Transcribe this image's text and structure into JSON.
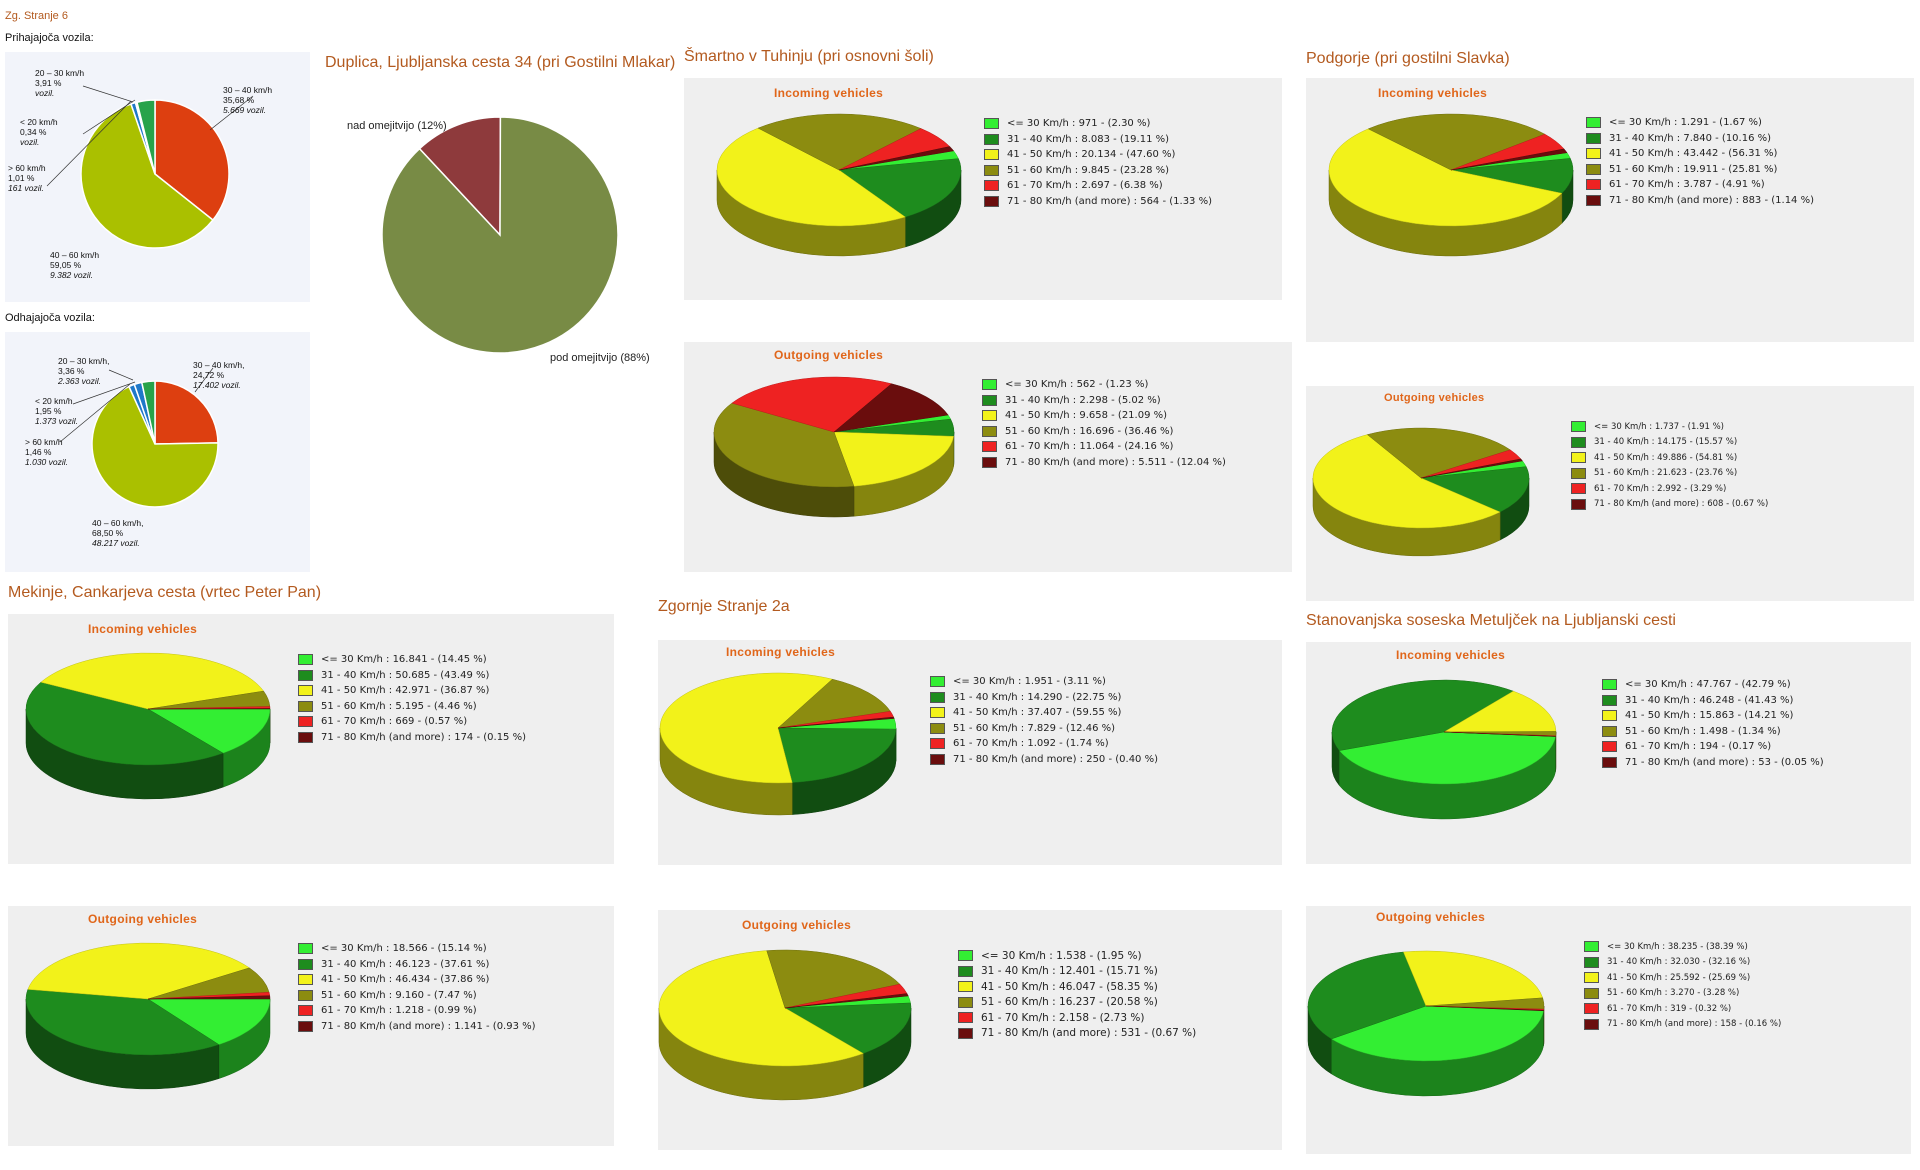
{
  "colors": {
    "c30": "#33ee33",
    "c40": "#1e8c1e",
    "c50": "#f2f21a",
    "c60": "#8c8c10",
    "c70": "#ee2222",
    "c80": "#6a0d0d",
    "zone_light": "#aac000",
    "zone_red": "#dd3f10",
    "zone_green": "#27a34a",
    "zone_blue": "#1f78c8",
    "dup_green": "#788b45",
    "dup_red": "#8e3a3c"
  },
  "page": {
    "top_label": "Zg. Stranje 6",
    "incoming_label": "Prihajajoča vozila:",
    "outgoing_label": "Odhajajoča vozila:"
  },
  "chart_data": [
    {
      "id": "zg_in",
      "type": "pie",
      "title": "Prihajajoča vozila:",
      "categories": [
        "30 - 40 km/h",
        "40 - 60 km/h",
        "> 60 km/h",
        "< 20 km/h",
        "20 - 30 km/h"
      ],
      "values": [
        35.68,
        59.05,
        1.01,
        0.34,
        3.91
      ],
      "counts": [
        "5.669 vozil.",
        "9.382 vozil.",
        "161 vozil.",
        "",
        ""
      ],
      "labels": [
        [
          "20 – 30 km/h",
          "3,91 %",
          "vozil."
        ],
        [
          "30 – 40 km/h",
          "35,68 %",
          "5.669 vozil."
        ],
        [
          "< 20 km/h",
          "0,34 %",
          "vozil."
        ],
        [
          "> 60 km/h",
          "1,01 %",
          "161 vozil."
        ],
        [
          "40 – 60 km/h",
          "59,05 %",
          "9.382 vozil."
        ]
      ]
    },
    {
      "id": "zg_out",
      "type": "pie",
      "title": "Odhajajoča vozila:",
      "categories": [
        "30 - 40 km/h",
        "40 - 60 km/h",
        "> 60 km/h",
        "< 20 km/h",
        "20 - 30 km/h"
      ],
      "values": [
        24.72,
        68.5,
        1.46,
        1.95,
        3.36
      ],
      "labels": [
        [
          "20 – 30 km/h,",
          "3,36 %",
          "2.363 vozil."
        ],
        [
          "30 – 40 km/h,",
          "24,72 %",
          "17.402 vozil."
        ],
        [
          "< 20 km/h",
          "1,95 %",
          "1.373 vozil."
        ],
        [
          "> 60 km/h",
          "1,46 %",
          "1.030 vozil."
        ],
        [
          "40 – 60 km/h,",
          "68,50 %",
          "48.217 vozil."
        ]
      ]
    },
    {
      "id": "duplica",
      "type": "pie",
      "title": "Duplica, Ljubljanska cesta 34 (pri Gostilni Mlakar)",
      "categories": [
        "pod omejitvijo (88%)",
        "nad omejitvijo (12%)"
      ],
      "values": [
        88,
        12
      ]
    },
    {
      "id": "smartno_in",
      "type": "pie",
      "title": "Šmartno v Tuhinju (pri osnovni šoli)",
      "subtitle": "Incoming vehicles",
      "values": [
        2.3,
        19.11,
        47.6,
        23.28,
        6.38,
        1.33
      ],
      "legend": [
        "<=  30 Km/h :    971 -  (2.30 %)",
        "31 -  40 Km/h :  8.083 -  (19.11 %)",
        "41 -  50 Km/h : 20.134 -  (47.60 %)",
        "51 -  60 Km/h :  9.845 -  (23.28 %)",
        "61 -  70 Km/h :  2.697 -  (6.38 %)",
        "71 -  80 Km/h (and more) :    564 -  (1.33 %)"
      ]
    },
    {
      "id": "smartno_out",
      "type": "pie",
      "subtitle": "Outgoing vehicles",
      "values": [
        1.23,
        5.02,
        21.09,
        36.46,
        24.16,
        12.04
      ],
      "legend": [
        "<=  30 Km/h :    562 -  (1.23 %)",
        "31 -  40 Km/h :  2.298 -  (5.02 %)",
        "41 -  50 Km/h :  9.658 -  (21.09 %)",
        "51 -  60 Km/h : 16.696 -  (36.46 %)",
        "61 -  70 Km/h : 11.064 -  (24.16 %)",
        "71 -  80 Km/h (and more) :  5.511 -  (12.04 %)"
      ]
    },
    {
      "id": "podgorje_in",
      "type": "pie",
      "title": "Podgorje (pri gostilni Slavka)",
      "subtitle": "Incoming vehicles",
      "values": [
        1.67,
        10.16,
        56.31,
        25.81,
        4.91,
        1.14
      ],
      "legend": [
        "<=  30 Km/h :  1.291 -  (1.67 %)",
        "31 -  40 Km/h :  7.840 -  (10.16 %)",
        "41 -  50 Km/h : 43.442 -  (56.31 %)",
        "51 -  60 Km/h : 19.911 -  (25.81 %)",
        "61 -  70 Km/h :  3.787 -  (4.91 %)",
        "71 -  80 Km/h (and more) :    883 -  (1.14 %)"
      ]
    },
    {
      "id": "podgorje_out",
      "type": "pie",
      "subtitle": "Outgoing vehicles",
      "values": [
        1.91,
        15.57,
        54.81,
        23.76,
        3.29,
        0.67
      ],
      "legend": [
        "<=  30 Km/h :  1.737 -  (1.91 %)",
        "31 -  40 Km/h : 14.175 -  (15.57 %)",
        "41 -  50 Km/h : 49.886 -  (54.81 %)",
        "51 -  60 Km/h : 21.623 -  (23.76 %)",
        "61 -  70 Km/h :  2.992 -  (3.29 %)",
        "71 -  80 Km/h (and more) :    608 -  (0.67 %)"
      ]
    },
    {
      "id": "mekinje_in",
      "type": "pie",
      "title": "Mekinje, Cankarjeva cesta (vrtec Peter Pan)",
      "subtitle": "Incoming vehicles",
      "values": [
        14.45,
        43.49,
        36.87,
        4.46,
        0.57,
        0.15
      ],
      "legend": [
        "<=  30 Km/h : 16.841 -  (14.45 %)",
        "31 -  40 Km/h : 50.685 -  (43.49 %)",
        "41 -  50 Km/h : 42.971 -  (36.87 %)",
        "51 -  60 Km/h :  5.195 -  (4.46 %)",
        "61 -  70 Km/h :    669 -  (0.57 %)",
        "71 -  80 Km/h (and more) :    174 -  (0.15 %)"
      ]
    },
    {
      "id": "mekinje_out",
      "type": "pie",
      "subtitle": "Outgoing vehicles",
      "values": [
        15.14,
        37.61,
        37.86,
        7.47,
        0.99,
        0.93
      ],
      "legend": [
        "<=  30 Km/h : 18.566 -  (15.14 %)",
        "31 -  40 Km/h : 46.123 -  (37.61 %)",
        "41 -  50 Km/h : 46.434 -  (37.86 %)",
        "51 -  60 Km/h :  9.160 -  (7.47 %)",
        "61 -  70 Km/h :  1.218 -  (0.99 %)",
        "71 -  80 Km/h (and more) :  1.141 -  (0.93 %)"
      ]
    },
    {
      "id": "zgstranje_in",
      "type": "pie",
      "title": "Zgornje Stranje 2a",
      "subtitle": "Incoming vehicles",
      "values": [
        3.11,
        22.75,
        59.55,
        12.46,
        1.74,
        0.4
      ],
      "legend": [
        "<=  30 Km/h :  1.951 -  (3.11 %)",
        "31 -  40 Km/h : 14.290 -  (22.75 %)",
        "41 -  50 Km/h : 37.407 -  (59.55 %)",
        "51 -  60 Km/h :  7.829 -  (12.46 %)",
        "61 -  70 Km/h :  1.092 -  (1.74 %)",
        "71 -  80 Km/h (and more) :    250 -  (0.40 %)"
      ]
    },
    {
      "id": "zgstranje_out",
      "type": "pie",
      "subtitle": "Outgoing vehicles",
      "values": [
        1.95,
        15.71,
        58.35,
        20.58,
        2.73,
        0.67
      ],
      "legend": [
        "<=  30 Km/h :  1.538 -  (1.95 %)",
        "31 -  40 Km/h : 12.401 -  (15.71 %)",
        "41 -  50 Km/h : 46.047 -  (58.35 %)",
        "51 -  60 Km/h : 16.237 -  (20.58 %)",
        "61 -  70 Km/h :  2.158 -  (2.73 %)",
        "71 -  80 Km/h (and more) :    531 -  (0.67 %)"
      ]
    },
    {
      "id": "metuljcek_in",
      "type": "pie",
      "title": "Stanovanjska soseska Metuljček na Ljubljanski cesti",
      "subtitle": "Incoming vehicles",
      "values": [
        42.79,
        41.43,
        14.21,
        1.34,
        0.17,
        0.05
      ],
      "legend": [
        "<=  30 Km/h : 47.767 -  (42.79 %)",
        "31 -  40 Km/h : 46.248 -  (41.43 %)",
        "41 -  50 Km/h : 15.863 -  (14.21 %)",
        "51 -  60 Km/h :  1.498 -  (1.34 %)",
        "61 -  70 Km/h :    194 -  (0.17 %)",
        "71 -  80 Km/h (and more) :     53 -  (0.05 %)"
      ]
    },
    {
      "id": "metuljcek_out",
      "type": "pie",
      "subtitle": "Outgoing vehicles",
      "values": [
        38.39,
        32.16,
        25.69,
        3.28,
        0.32,
        0.16
      ],
      "legend": [
        "<=  30 Km/h : 38.235 -  (38.39 %)",
        "31 -  40 Km/h : 32.030 -  (32.16 %)",
        "41 -  50 Km/h : 25.592 -  (25.69 %)",
        "51 -  60 Km/h :  3.270 -  (3.28 %)",
        "61 -  70 Km/h :    319 -  (0.32 %)",
        "71 -  80 Km/h (and more) :    158 -  (0.16 %)"
      ]
    }
  ]
}
